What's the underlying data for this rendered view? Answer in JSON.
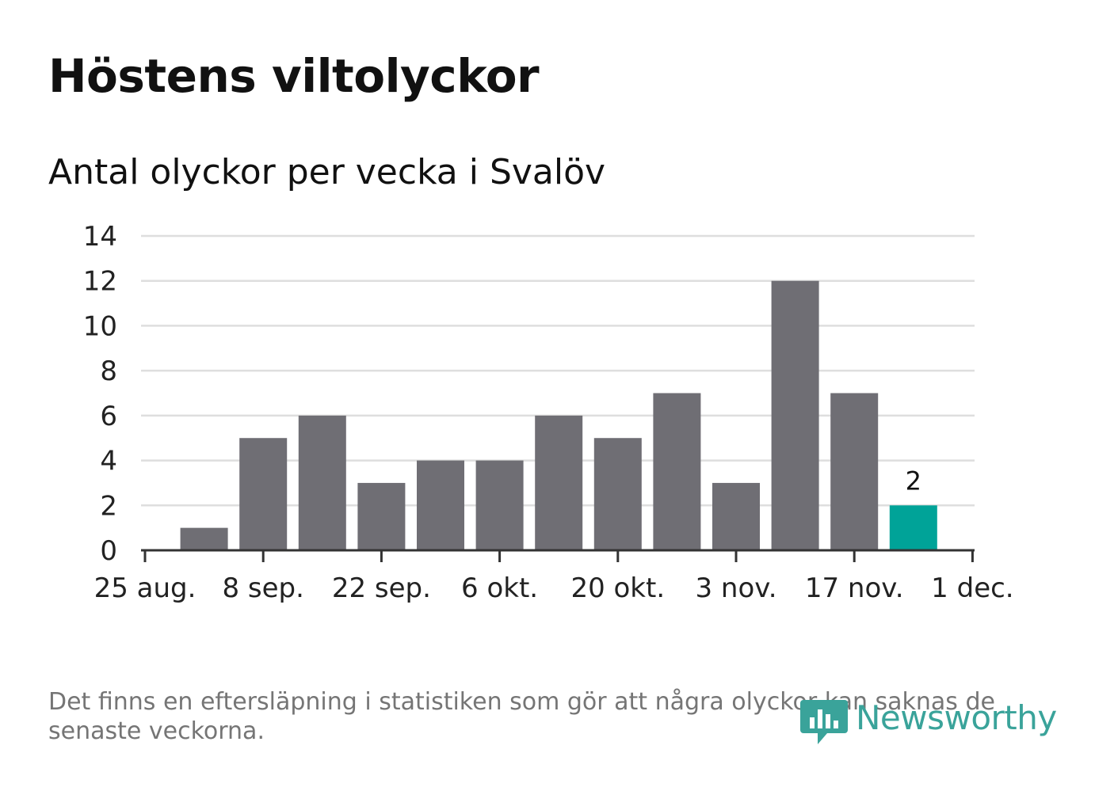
{
  "header": {
    "title": "Höstens viltolyckor",
    "subtitle": "Antal olyckor per vecka i Svalöv"
  },
  "chart_data": {
    "type": "bar",
    "title": "Höstens viltolyckor",
    "subtitle": "Antal olyckor per vecka i Svalöv",
    "xlabel": "",
    "ylabel": "",
    "ylim": [
      0,
      14
    ],
    "yticks": [
      0,
      2,
      4,
      6,
      8,
      10,
      12,
      14
    ],
    "xticks": [
      "25 aug.",
      "8 sep.",
      "22 sep.",
      "6 okt.",
      "20 okt.",
      "3 nov.",
      "17 nov.",
      "1 dec."
    ],
    "grid": true,
    "values": [
      1,
      5,
      6,
      3,
      4,
      4,
      6,
      5,
      7,
      3,
      12,
      7,
      2
    ],
    "highlight_index": 12,
    "highlight_label": "2",
    "colors": {
      "bar": "#6f6e74",
      "highlight": "#00a398",
      "grid": "#dedede",
      "axis": "#333333",
      "tick_text": "#222222"
    }
  },
  "footer": {
    "note": "Det finns en eftersläpning i statistiken som gör att några olyckor kan saknas de senaste veckorna.",
    "logo_text": "Newsworthy",
    "logo_icon": "newsworthy-bar-chart-bubble-icon"
  }
}
